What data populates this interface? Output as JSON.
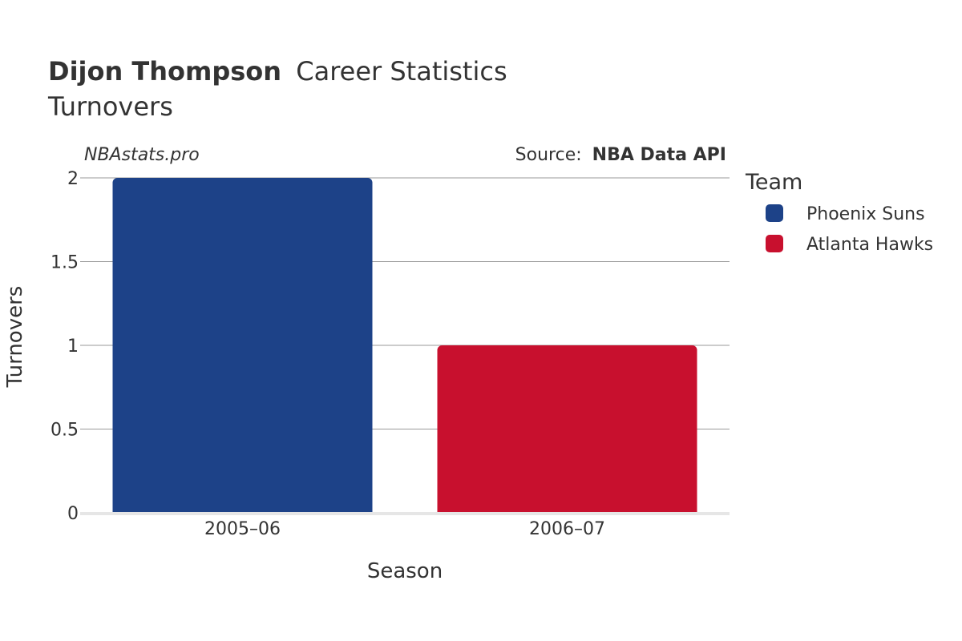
{
  "header": {
    "title_bold": "Dijon Thompson",
    "title_rest": "Career Statistics",
    "subtitle": "Turnovers"
  },
  "credits": {
    "site": "NBAstats.pro",
    "source_prefix": "Source:",
    "source_name": "NBA Data API"
  },
  "legend": {
    "title": "Team",
    "items": [
      {
        "label": "Phoenix Suns",
        "color": "#1D4288"
      },
      {
        "label": "Atlanta Hawks",
        "color": "#C8102E"
      }
    ]
  },
  "chart_data": {
    "type": "bar",
    "categories": [
      "2005–06",
      "2006–07"
    ],
    "series": [
      {
        "name": "Phoenix Suns",
        "color": "#1D4288",
        "values": [
          2,
          null
        ]
      },
      {
        "name": "Atlanta Hawks",
        "color": "#C8102E",
        "values": [
          null,
          1
        ]
      }
    ],
    "xlabel": "Season",
    "ylabel": "Turnovers",
    "ylim": [
      0,
      2
    ],
    "yticks": [
      0,
      0.5,
      1,
      1.5,
      2
    ],
    "ytick_labels": [
      "0",
      "0.5",
      "1",
      "1.5",
      "2"
    ],
    "grid": true,
    "legend_position": "right"
  }
}
